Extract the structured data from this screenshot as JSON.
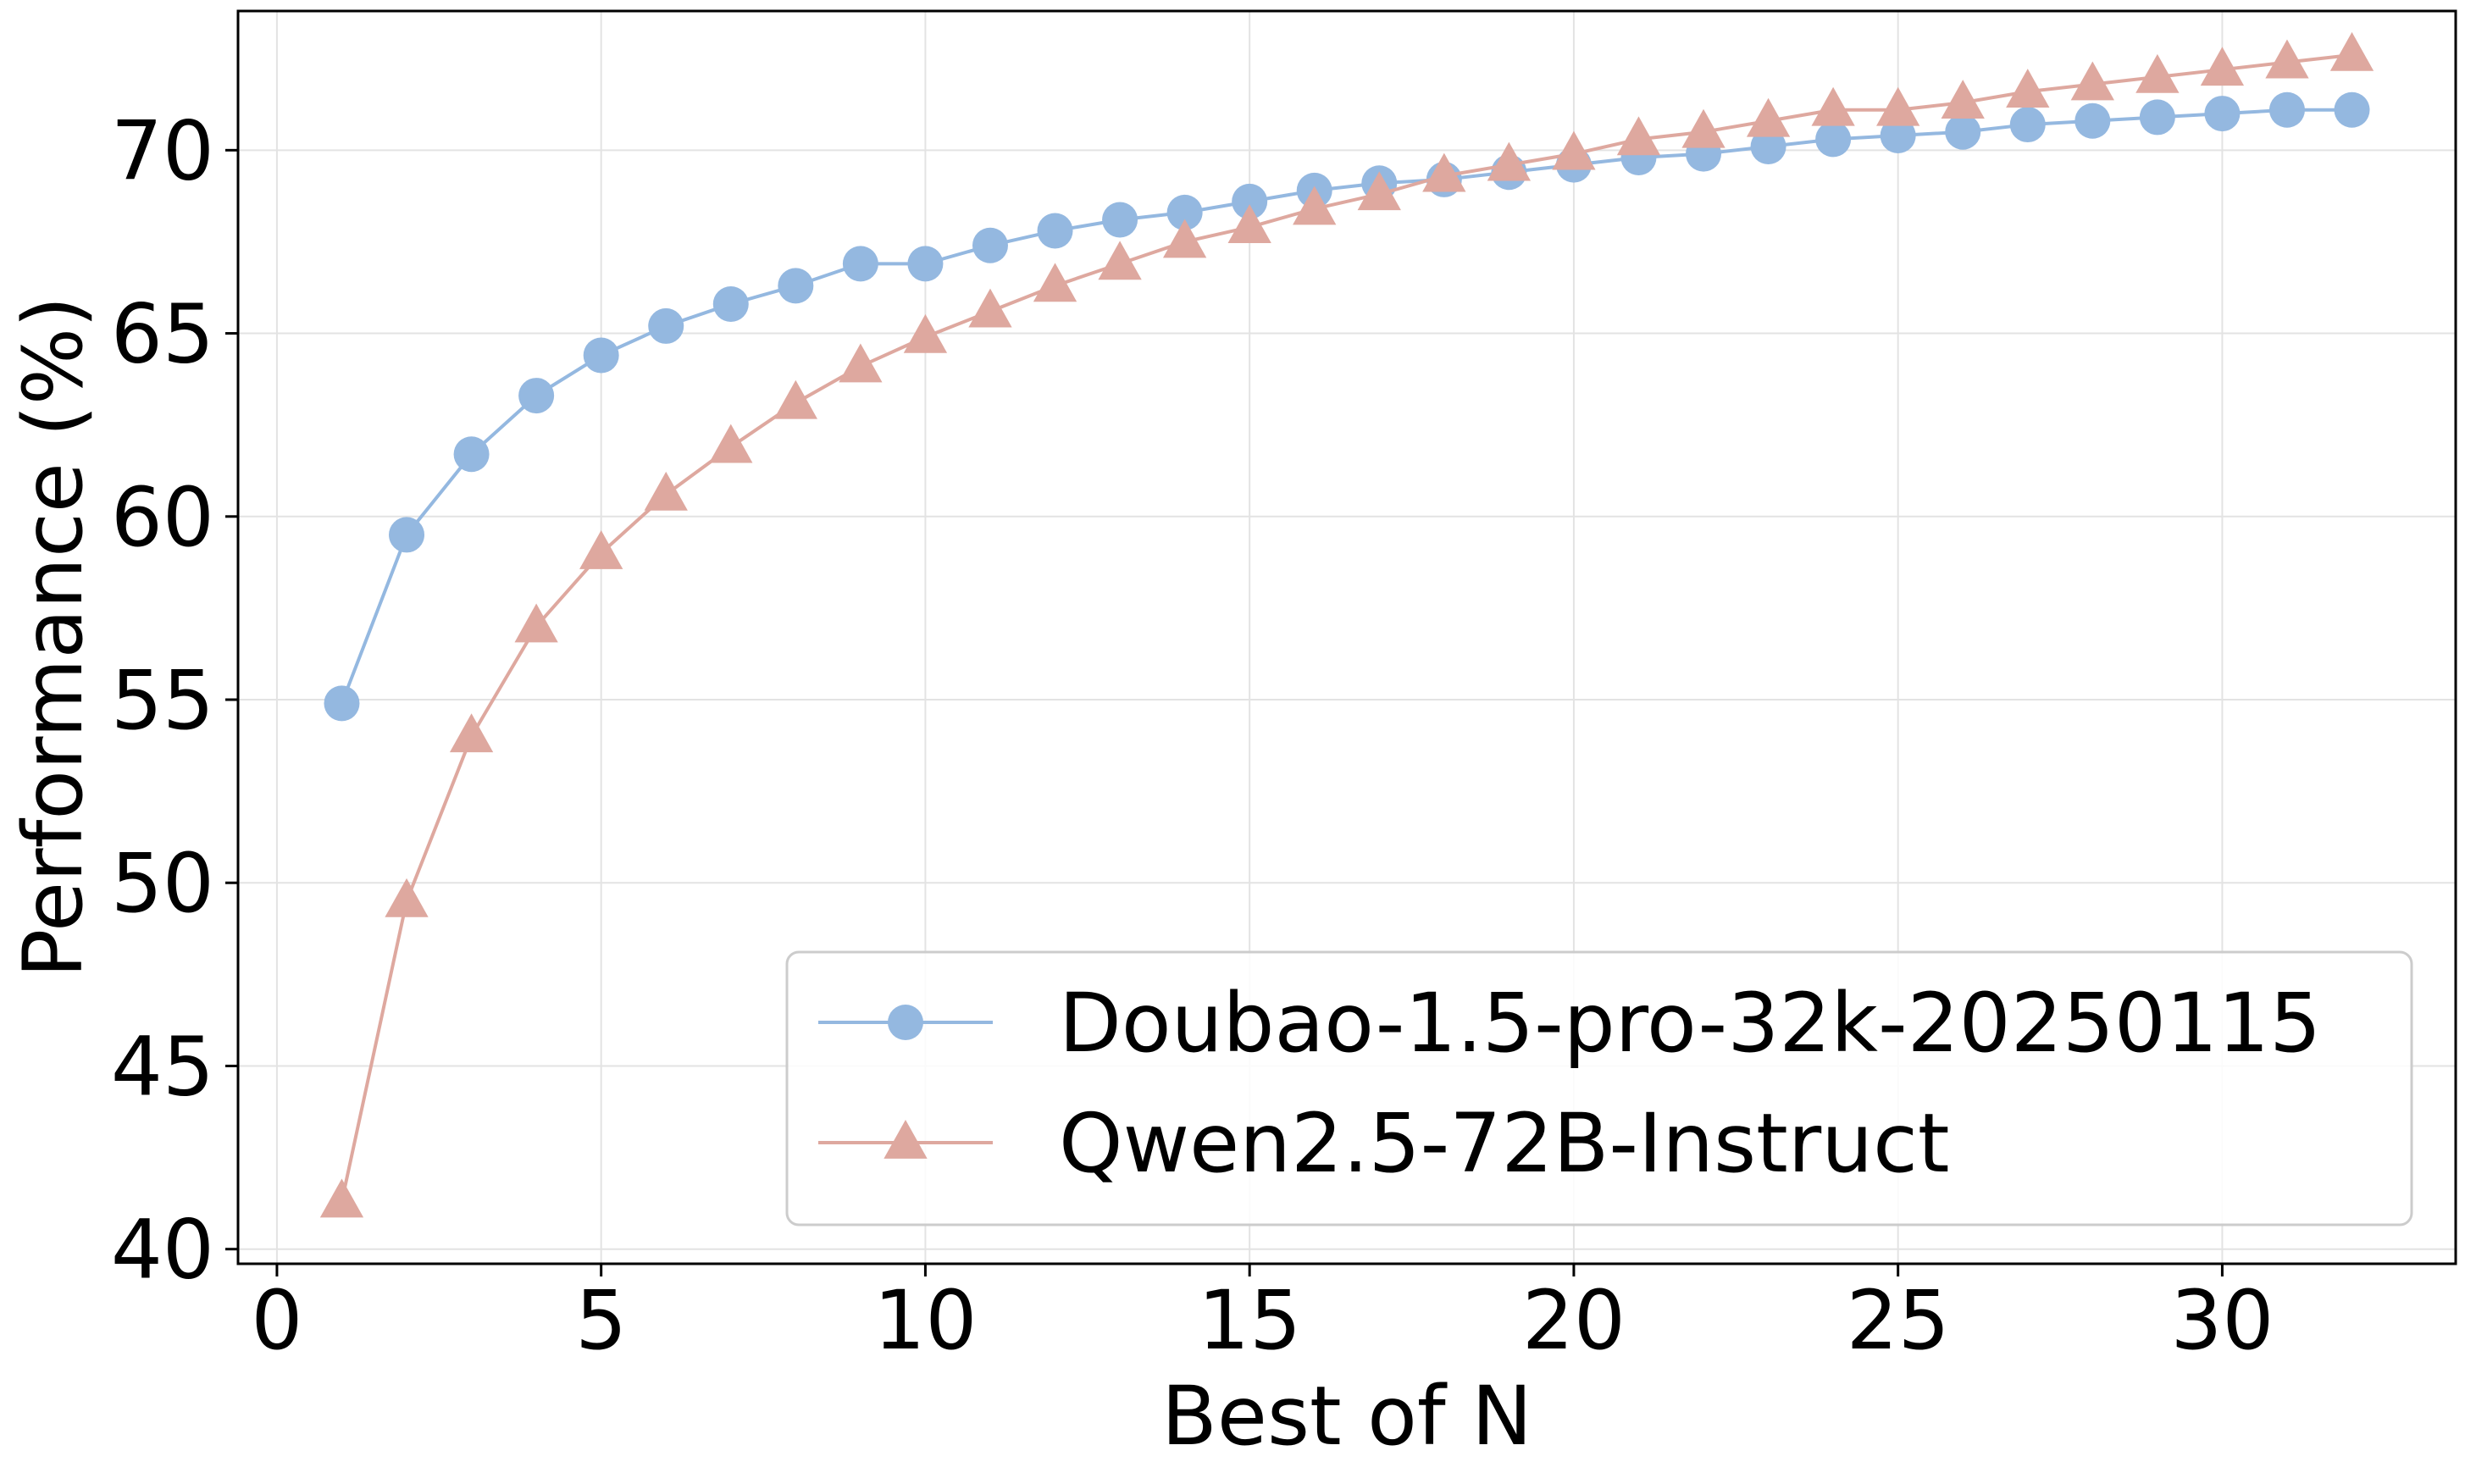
{
  "chart_data": {
    "type": "line",
    "title": "",
    "xlabel": "Best of N",
    "ylabel": "Performance (%)",
    "xlim": [
      -0.6,
      33.6
    ],
    "ylim": [
      39.6,
      73.8
    ],
    "xticks": [
      0,
      5,
      10,
      15,
      20,
      25,
      30
    ],
    "yticks": [
      40,
      45,
      50,
      55,
      60,
      65,
      70
    ],
    "grid": true,
    "legend": {
      "placement": "lower-right"
    },
    "x": [
      1,
      2,
      3,
      4,
      5,
      6,
      7,
      8,
      9,
      10,
      11,
      12,
      13,
      14,
      15,
      16,
      17,
      18,
      19,
      20,
      21,
      22,
      23,
      24,
      25,
      26,
      27,
      28,
      29,
      30,
      31,
      32
    ],
    "series": [
      {
        "name": "Doubao-1.5-pro-32k-20250115",
        "marker": "circle",
        "color": "#94b8e0",
        "values": [
          54.9,
          59.5,
          61.7,
          63.3,
          64.4,
          65.2,
          65.8,
          66.3,
          66.9,
          66.9,
          67.4,
          67.8,
          68.1,
          68.3,
          68.6,
          68.9,
          69.1,
          69.2,
          69.4,
          69.6,
          69.8,
          69.9,
          70.1,
          70.3,
          70.4,
          70.5,
          70.7,
          70.8,
          70.9,
          71.0,
          71.1,
          71.1
        ]
      },
      {
        "name": "Qwen2.5-72B-Instruct",
        "marker": "triangle",
        "color": "#dea89f",
        "values": [
          41.3,
          49.5,
          54.0,
          57.0,
          59.0,
          60.6,
          61.9,
          63.1,
          64.1,
          64.9,
          65.6,
          66.3,
          66.9,
          67.5,
          67.9,
          68.4,
          68.8,
          69.3,
          69.6,
          69.9,
          70.3,
          70.5,
          70.8,
          71.1,
          71.1,
          71.3,
          71.6,
          71.8,
          72.0,
          72.2,
          72.4,
          72.6
        ]
      }
    ]
  }
}
